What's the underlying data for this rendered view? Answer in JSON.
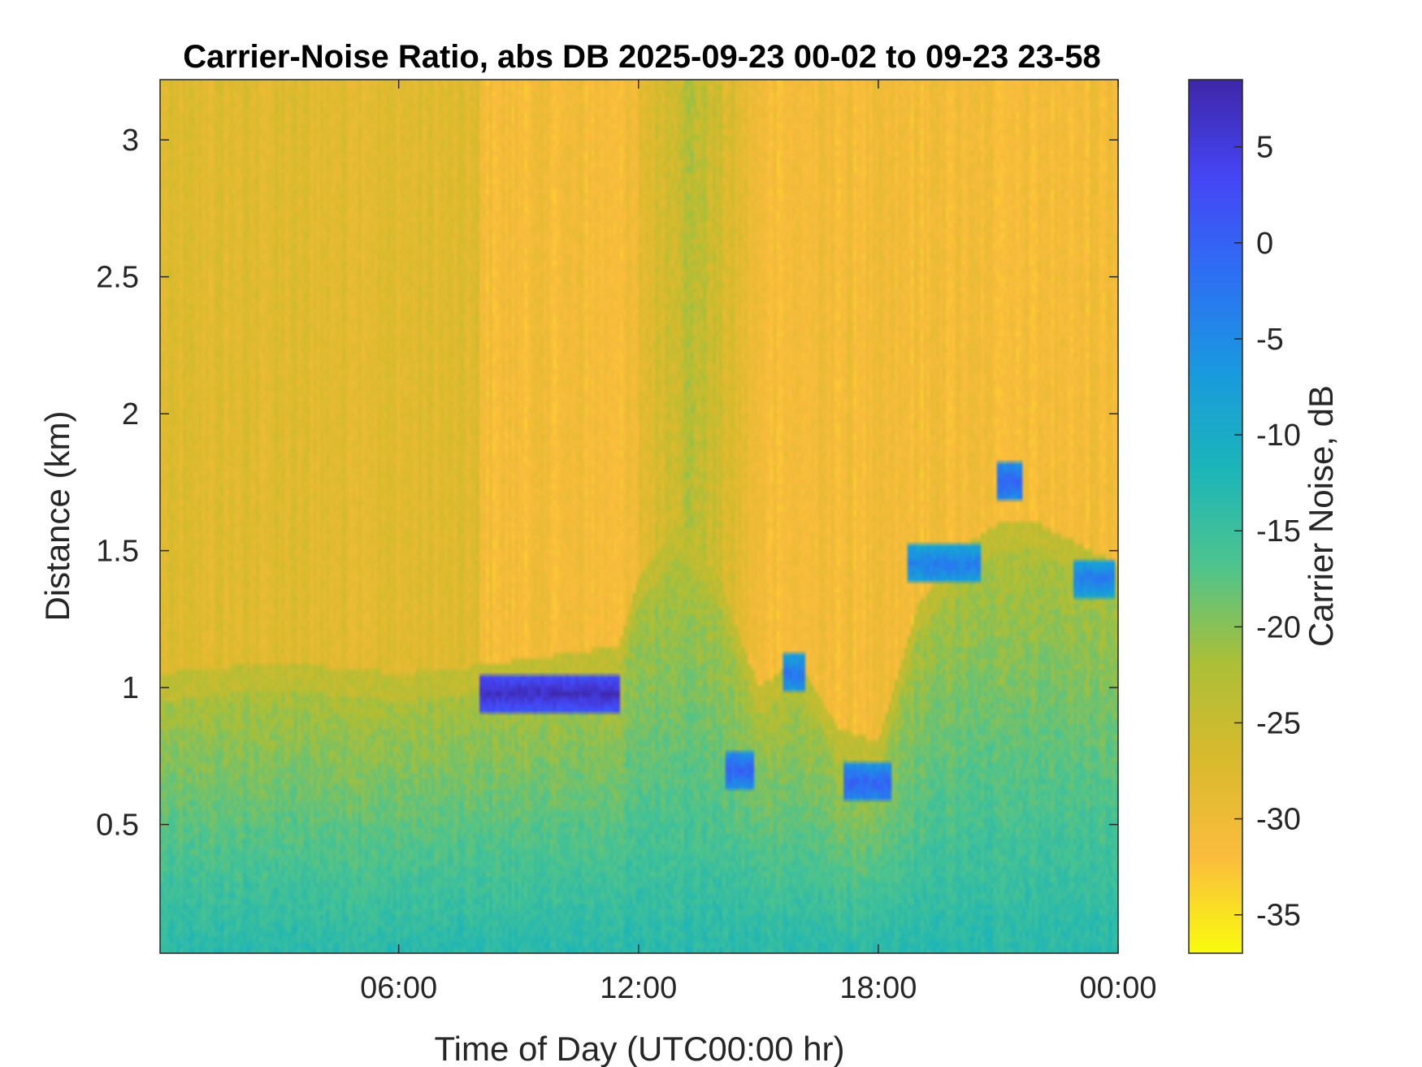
{
  "chart_data": {
    "type": "heatmap",
    "title": "Carrier-Noise Ratio, abs DB 2025-09-23 00-02 to 09-23 23-58",
    "xlabel": "Time of Day (UTC00:00 hr)",
    "ylabel": "Distance (km)",
    "x_ticks": [
      {
        "label": "06:00",
        "hour": 6
      },
      {
        "label": "12:00",
        "hour": 12
      },
      {
        "label": "18:00",
        "hour": 18
      },
      {
        "label": "00:00",
        "hour": 24
      }
    ],
    "y_ticks": [
      {
        "label": "0.5",
        "value": 0.5
      },
      {
        "label": "1",
        "value": 1
      },
      {
        "label": "1.5",
        "value": 1.5
      },
      {
        "label": "2",
        "value": 2
      },
      {
        "label": "2.5",
        "value": 2.5
      },
      {
        "label": "3",
        "value": 3
      }
    ],
    "xlim_hours": [
      0.03,
      24.0
    ],
    "ylim_km": [
      0.03,
      3.22
    ],
    "colorbar": {
      "label": "Carrier Noise, dB",
      "range": [
        -37,
        8.5
      ],
      "ticks": [
        "5",
        "0",
        "-5",
        "-10",
        "-15",
        "-20",
        "-25",
        "-30",
        "-35"
      ],
      "tick_values": [
        5,
        0,
        -5,
        -10,
        -15,
        -20,
        -25,
        -30,
        -35
      ],
      "colormap": "parula-reversed",
      "colors": [
        "#f9fb0e",
        "#fbbc3d",
        "#d9ba2d",
        "#abbf37",
        "#4dc48e",
        "#1bb5b9",
        "#1999df",
        "#2d6ff4",
        "#4545f4",
        "#3e26a8"
      ]
    },
    "field": {
      "background_db": -31,
      "boundary_layer_top_km": [
        [
          0,
          0.95
        ],
        [
          2,
          0.98
        ],
        [
          4,
          0.98
        ],
        [
          6,
          0.95
        ],
        [
          8,
          0.98
        ],
        [
          9,
          1.0
        ],
        [
          11.5,
          1.05
        ],
        [
          12,
          1.3
        ],
        [
          13,
          1.5
        ],
        [
          14,
          1.3
        ],
        [
          15,
          0.9
        ],
        [
          16,
          1.0
        ],
        [
          17,
          0.75
        ],
        [
          18,
          0.7
        ],
        [
          19,
          1.2
        ],
        [
          20,
          1.4
        ],
        [
          21,
          1.5
        ],
        [
          22,
          1.5
        ],
        [
          24,
          1.35
        ]
      ],
      "cloud_features": [
        {
          "hours": [
            8.0,
            11.5
          ],
          "km_center": 0.98,
          "db": 7
        },
        {
          "hours": [
            14.2,
            14.9
          ],
          "km_center": 0.7,
          "db": 0
        },
        {
          "hours": [
            15.6,
            16.2
          ],
          "km_center": 1.05,
          "db": -2
        },
        {
          "hours": [
            17.1,
            18.3
          ],
          "km_center": 0.65,
          "db": 0
        },
        {
          "hours": [
            18.7,
            20.6
          ],
          "km_center": 1.45,
          "db": -3
        },
        {
          "hours": [
            21.0,
            21.6
          ],
          "km_center": 1.75,
          "db": 0
        },
        {
          "hours": [
            22.9,
            23.9
          ],
          "km_center": 1.4,
          "db": -3
        }
      ]
    }
  }
}
